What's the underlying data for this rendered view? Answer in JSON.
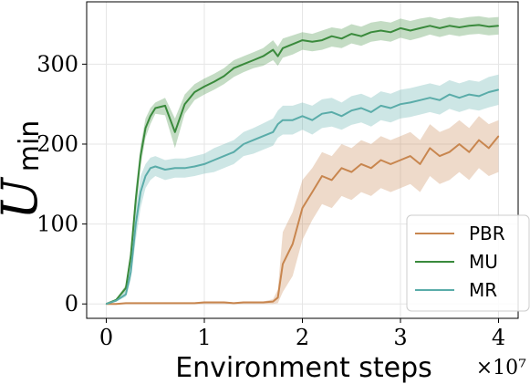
{
  "chart_data": {
    "type": "line",
    "xlabel": "Environment steps",
    "ylabel": "U",
    "ylabel_subscript": "min",
    "x_multiplier_label": "×10⁷",
    "xlim": [
      -0.2,
      4.2
    ],
    "ylim": [
      -18,
      378
    ],
    "grid": true,
    "legend_position": "lower-right",
    "x_ticks": [
      0,
      1,
      2,
      3,
      4
    ],
    "x_tick_labels": [
      "0",
      "1",
      "2",
      "3",
      "4"
    ],
    "y_ticks": [
      0,
      100,
      200,
      300
    ],
    "y_tick_labels": [
      "0",
      "100",
      "200",
      "300"
    ],
    "x": [
      0,
      0.1,
      0.2,
      0.25,
      0.3,
      0.35,
      0.4,
      0.45,
      0.5,
      0.6,
      0.7,
      0.8,
      0.9,
      1.0,
      1.1,
      1.2,
      1.3,
      1.4,
      1.5,
      1.6,
      1.7,
      1.75,
      1.8,
      1.9,
      2.0,
      2.1,
      2.2,
      2.3,
      2.4,
      2.5,
      2.6,
      2.7,
      2.8,
      2.9,
      3.0,
      3.1,
      3.2,
      3.3,
      3.4,
      3.5,
      3.6,
      3.7,
      3.8,
      3.9,
      4.0
    ],
    "series": [
      {
        "name": "PBR",
        "color": "#c8864f",
        "values": [
          0,
          0,
          1,
          1,
          1,
          1,
          1,
          1,
          1,
          1,
          1,
          1,
          1,
          2,
          2,
          2,
          1,
          2,
          2,
          2,
          3,
          8,
          50,
          75,
          120,
          140,
          160,
          155,
          170,
          165,
          175,
          170,
          180,
          175,
          180,
          185,
          175,
          195,
          185,
          190,
          200,
          190,
          205,
          195,
          210
        ],
        "lower": [
          0,
          0,
          0,
          0,
          0,
          0,
          0,
          0,
          0,
          0,
          0,
          0,
          0,
          0,
          0,
          0,
          0,
          0,
          0,
          0,
          0,
          1,
          15,
          35,
          80,
          105,
          125,
          120,
          135,
          130,
          140,
          135,
          145,
          140,
          145,
          150,
          140,
          160,
          150,
          155,
          165,
          155,
          170,
          160,
          165
        ],
        "upper": [
          0,
          0,
          2,
          2,
          2,
          2,
          2,
          2,
          2,
          2,
          2,
          2,
          2,
          3,
          3,
          3,
          2,
          3,
          3,
          3,
          6,
          18,
          90,
          115,
          155,
          170,
          190,
          185,
          200,
          195,
          205,
          200,
          210,
          205,
          210,
          215,
          205,
          225,
          215,
          220,
          230,
          220,
          235,
          225,
          230
        ]
      },
      {
        "name": "MU",
        "color": "#3a8a3c",
        "values": [
          0,
          5,
          20,
          60,
          130,
          185,
          220,
          235,
          245,
          248,
          215,
          250,
          265,
          272,
          278,
          285,
          295,
          300,
          305,
          310,
          318,
          310,
          320,
          325,
          330,
          328,
          330,
          335,
          332,
          338,
          335,
          340,
          342,
          340,
          345,
          342,
          345,
          348,
          345,
          348,
          346,
          348,
          349,
          347,
          348
        ],
        "lower": [
          0,
          4,
          16,
          50,
          115,
          172,
          208,
          225,
          238,
          236,
          195,
          238,
          255,
          262,
          268,
          275,
          284,
          290,
          295,
          298,
          305,
          298,
          308,
          312,
          318,
          316,
          318,
          322,
          320,
          326,
          323,
          328,
          330,
          328,
          333,
          330,
          333,
          337,
          334,
          337,
          335,
          337,
          338,
          336,
          337
        ],
        "upper": [
          0,
          6,
          24,
          70,
          145,
          198,
          232,
          245,
          252,
          258,
          232,
          262,
          275,
          282,
          288,
          295,
          305,
          310,
          315,
          320,
          330,
          322,
          332,
          336,
          340,
          338,
          342,
          346,
          344,
          350,
          347,
          352,
          354,
          352,
          357,
          354,
          357,
          359,
          356,
          359,
          357,
          359,
          360,
          358,
          359
        ]
      },
      {
        "name": "MR",
        "color": "#5aaca9",
        "values": [
          0,
          4,
          12,
          40,
          100,
          140,
          160,
          170,
          172,
          168,
          170,
          170,
          172,
          175,
          180,
          185,
          190,
          200,
          205,
          210,
          215,
          225,
          230,
          230,
          235,
          230,
          238,
          240,
          235,
          242,
          245,
          240,
          248,
          245,
          250,
          252,
          255,
          258,
          255,
          262,
          258,
          262,
          260,
          265,
          268
        ],
        "lower": [
          0,
          3,
          9,
          30,
          80,
          120,
          145,
          155,
          160,
          155,
          158,
          158,
          160,
          163,
          165,
          170,
          175,
          185,
          188,
          193,
          198,
          208,
          212,
          212,
          218,
          212,
          220,
          222,
          218,
          224,
          227,
          222,
          230,
          227,
          232,
          234,
          237,
          240,
          237,
          244,
          240,
          244,
          242,
          246,
          249
        ],
        "upper": [
          0,
          5,
          16,
          52,
          118,
          160,
          175,
          183,
          185,
          180,
          182,
          182,
          185,
          188,
          195,
          200,
          205,
          215,
          220,
          226,
          232,
          242,
          248,
          248,
          252,
          248,
          256,
          258,
          252,
          260,
          263,
          258,
          266,
          263,
          268,
          270,
          273,
          276,
          273,
          280,
          276,
          280,
          278,
          284,
          287
        ]
      }
    ],
    "legend": [
      {
        "label": "PBR",
        "color": "#c8864f"
      },
      {
        "label": "MU",
        "color": "#3a8a3c"
      },
      {
        "label": "MR",
        "color": "#5aaca9"
      }
    ]
  }
}
